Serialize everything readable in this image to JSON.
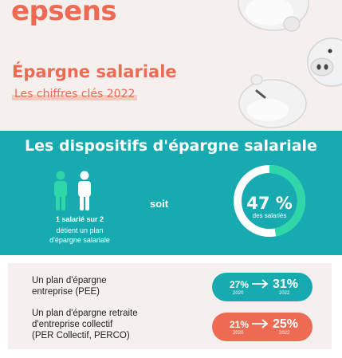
{
  "brand": {
    "logo": "epsens",
    "accent_color": "#ee6a52",
    "teal_color": "#17aab0",
    "green_color": "#2fd6a7"
  },
  "header": {
    "title": "Épargne salariale",
    "subtitle": "Les chiffres clés 2022"
  },
  "section": {
    "title": "Les dispositifs d'épargne salariale",
    "stat_bold": "1 salarié sur 2",
    "stat_text_line1": "détient un plan",
    "stat_text_line2": "d'épargne salariale",
    "connector": "soit",
    "percent": "47 %",
    "percent_value": 47,
    "percent_label": "des salariés"
  },
  "plans": [
    {
      "label_line1": "Un plan d'épargne",
      "label_line2": "entreprise (PEE)",
      "label_line3": "",
      "from_value": "27%",
      "to_value": "31%",
      "from_year": "2020",
      "to_year": "2022",
      "color": "#17aab0"
    },
    {
      "label_line1": "Un plan d'épargne retraite",
      "label_line2": "d'entreprise collectif",
      "label_line3": "(PER Collectif, PERCO)",
      "from_value": "21%",
      "to_value": "25%",
      "from_year": "2020",
      "to_year": "2022",
      "color": "#ee6a52"
    }
  ]
}
